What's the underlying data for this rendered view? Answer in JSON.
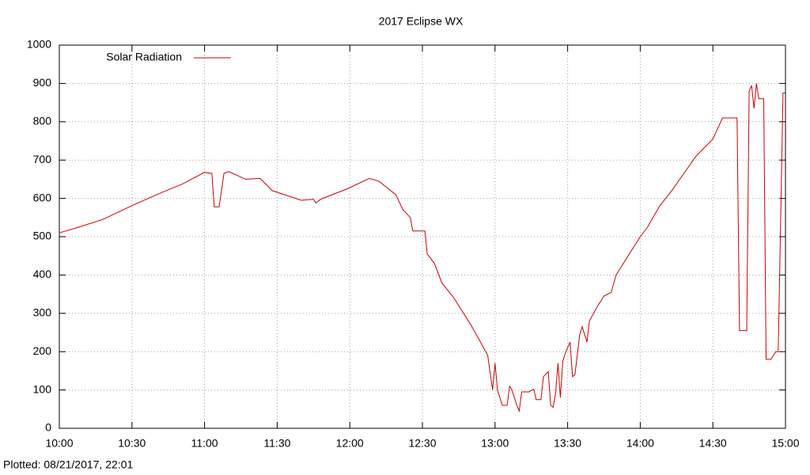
{
  "chart_data": {
    "type": "line",
    "title": "2017 Eclipse WX",
    "x": [
      "10:00",
      "10:08",
      "10:18",
      "10:29",
      "10:41",
      "10:51",
      "11:00",
      "11:03",
      "11:04",
      "11:06",
      "11:08",
      "11:10",
      "11:17",
      "11:23",
      "11:28",
      "11:40",
      "11:45",
      "11:46",
      "11:48",
      "11:59",
      "12:08",
      "12:12",
      "12:19",
      "12:22",
      "12:25",
      "12:26",
      "12:31",
      "12:32",
      "12:35",
      "12:38",
      "12:43",
      "12:50",
      "12:54",
      "12:57",
      "12:59",
      "13:00",
      "13:01",
      "13:03",
      "13:05",
      "13:06",
      "13:07",
      "13:09",
      "13:10",
      "13:11",
      "13:14",
      "13:16",
      "13:17",
      "13:19",
      "13:20",
      "13:22",
      "13:23",
      "13:24",
      "13:25",
      "13:26",
      "13:27",
      "13:28",
      "13:29",
      "13:31",
      "13:32",
      "13:33",
      "13:35",
      "13:36",
      "13:38",
      "13:39",
      "13:42",
      "13:45",
      "13:48",
      "13:50",
      "13:54",
      "14:00",
      "14:03",
      "14:08",
      "14:13",
      "14:18",
      "14:23",
      "14:30",
      "14:34",
      "14:40",
      "14:41",
      "14:44",
      "14:45",
      "14:46",
      "14:47",
      "14:48",
      "14:49",
      "14:51",
      "14:52",
      "14:54",
      "14:56",
      "14:57",
      "14:59",
      "15:00"
    ],
    "series": [
      {
        "name": "Solar Radiation",
        "color": "#cc0000",
        "values": [
          510,
          525,
          545,
          578,
          612,
          638,
          668,
          665,
          578,
          578,
          665,
          670,
          650,
          652,
          620,
          595,
          598,
          588,
          598,
          625,
          652,
          645,
          610,
          570,
          550,
          515,
          515,
          455,
          430,
          380,
          340,
          270,
          225,
          190,
          100,
          170,
          100,
          60,
          60,
          110,
          100,
          60,
          45,
          95,
          95,
          102,
          75,
          75,
          135,
          148,
          60,
          55,
          90,
          170,
          80,
          175,
          195,
          225,
          135,
          140,
          245,
          265,
          225,
          280,
          315,
          345,
          355,
          400,
          440,
          500,
          525,
          580,
          620,
          665,
          710,
          755,
          810,
          810,
          255,
          255,
          880,
          895,
          835,
          900,
          860,
          860,
          180,
          180,
          200,
          200,
          875,
          875
        ]
      }
    ],
    "xlim": [
      "10:00",
      "15:00"
    ],
    "xticks": [
      "10:00",
      "10:30",
      "11:00",
      "11:30",
      "12:00",
      "12:30",
      "13:00",
      "13:30",
      "14:00",
      "14:30",
      "15:00"
    ],
    "ylim": [
      0,
      1000
    ],
    "yticks": [
      0,
      100,
      200,
      300,
      400,
      500,
      600,
      700,
      800,
      900,
      1000
    ],
    "grid": true,
    "legend": "top-left",
    "annotation": "Plotted: 08/21/2017, 22:01"
  }
}
